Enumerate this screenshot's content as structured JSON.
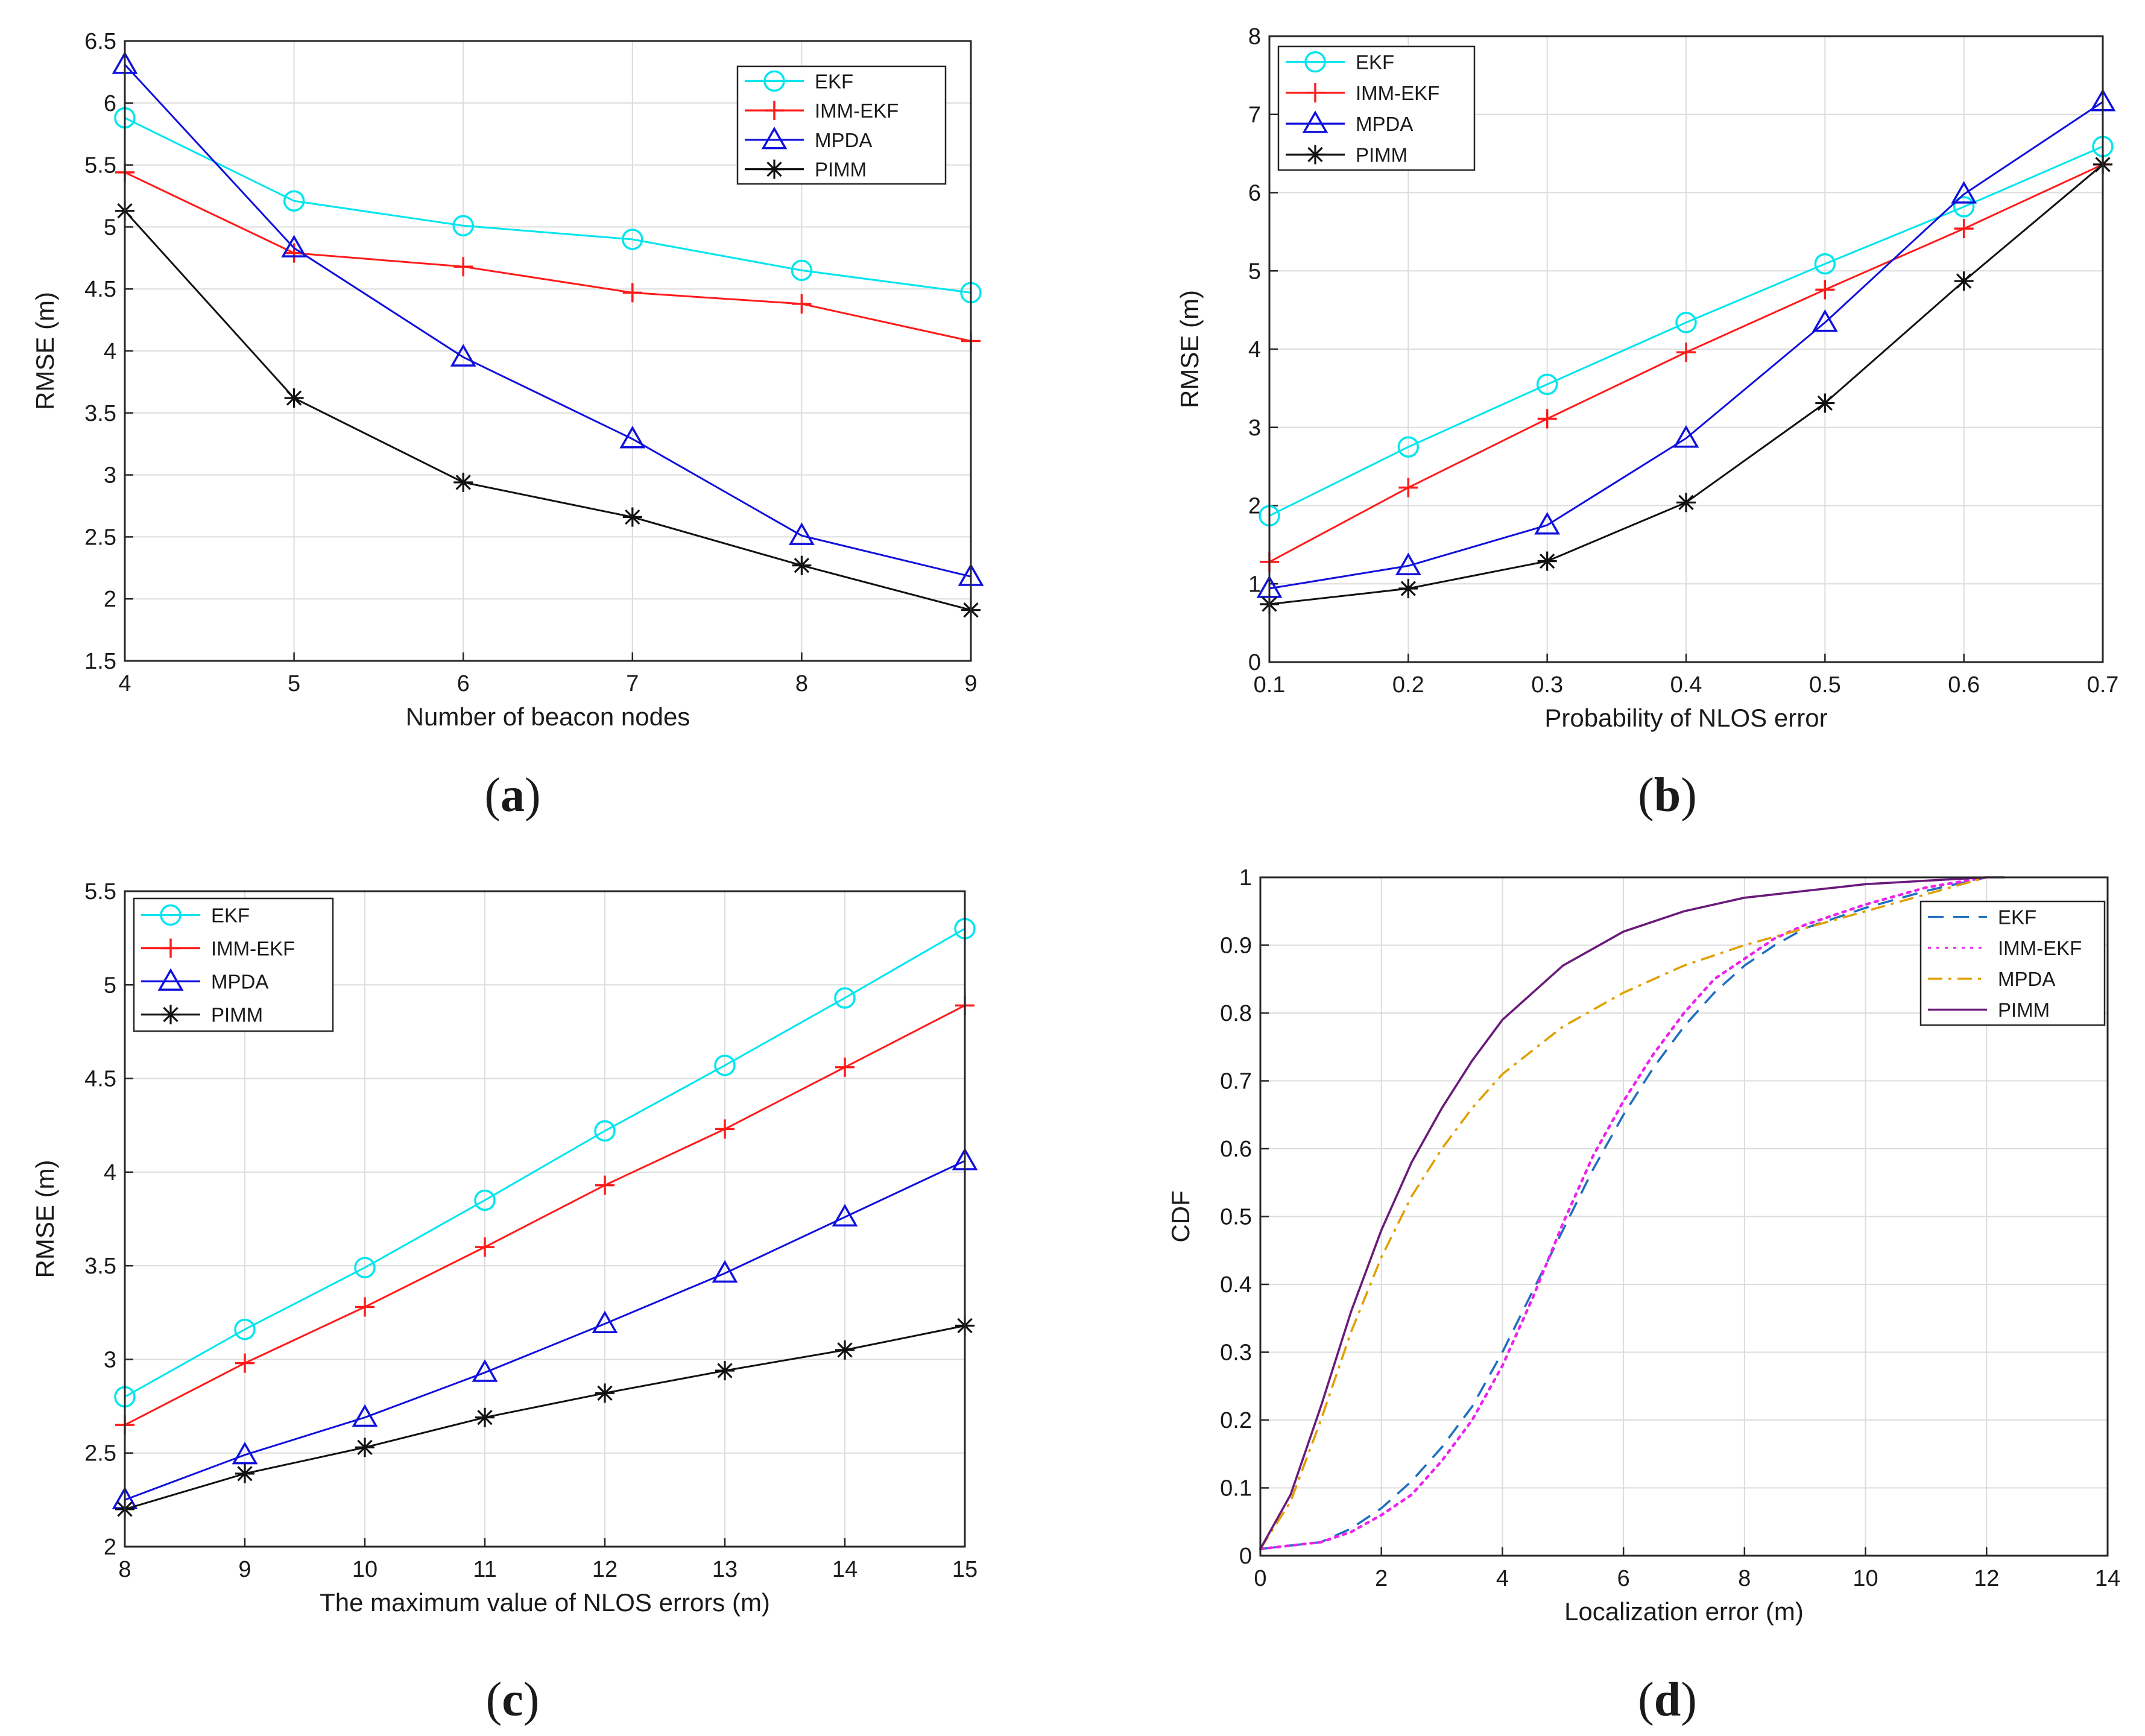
{
  "figure": {
    "panels": [
      {
        "caption_open": "(",
        "caption_letter": "a",
        "caption_close": ")"
      },
      {
        "caption_open": "(",
        "caption_letter": "b",
        "caption_close": ")"
      },
      {
        "caption_open": "(",
        "caption_letter": "c",
        "caption_close": ")"
      },
      {
        "caption_open": "(",
        "caption_letter": "d",
        "caption_close": ")"
      }
    ]
  },
  "colors": {
    "EKF": "#00e5ee",
    "IMM-EKF": "#ff1a1a",
    "MPDA": "#1010dd",
    "PIMM": "#111111",
    "EKF_cdf": "#1f6fbf",
    "IMM-EKF_cdf": "#ee22ee",
    "MPDA_cdf": "#e0a000",
    "PIMM_cdf": "#6a1a7a"
  },
  "chart_data": [
    {
      "type": "line",
      "panel": "a",
      "xlabel": "Number of beacon nodes",
      "ylabel": "RMSE (m)",
      "xlim": [
        4,
        9
      ],
      "ylim": [
        1.5,
        6.5
      ],
      "xticks": [
        "4",
        "5",
        "6",
        "7",
        "8",
        "9"
      ],
      "yticks": [
        "1.5",
        "2",
        "2.5",
        "3",
        "3.5",
        "4",
        "4.5",
        "5",
        "5.5",
        "6",
        "6.5"
      ],
      "legend_position": "top-right",
      "x": [
        4,
        5,
        6,
        7,
        8,
        9
      ],
      "series": [
        {
          "name": "EKF",
          "marker": "circle",
          "values": [
            5.88,
            5.21,
            5.01,
            4.9,
            4.65,
            4.47
          ]
        },
        {
          "name": "IMM-EKF",
          "marker": "plus",
          "values": [
            5.44,
            4.79,
            4.68,
            4.47,
            4.38,
            4.08
          ]
        },
        {
          "name": "MPDA",
          "marker": "triangle",
          "values": [
            6.31,
            4.83,
            3.95,
            3.29,
            2.51,
            2.18
          ]
        },
        {
          "name": "PIMM",
          "marker": "asterisk",
          "values": [
            5.13,
            3.62,
            2.94,
            2.66,
            2.27,
            1.91
          ]
        }
      ]
    },
    {
      "type": "line",
      "panel": "b",
      "xlabel": "Probability of NLOS error",
      "ylabel": "RMSE (m)",
      "xlim": [
        0.1,
        0.7
      ],
      "ylim": [
        0,
        8
      ],
      "xticks": [
        "0.1",
        "0.2",
        "0.3",
        "0.4",
        "0.5",
        "0.6",
        "0.7"
      ],
      "yticks": [
        "0",
        "1",
        "2",
        "3",
        "4",
        "5",
        "6",
        "7",
        "8"
      ],
      "legend_position": "top-left",
      "x": [
        0.1,
        0.2,
        0.3,
        0.4,
        0.5,
        0.6,
        0.7
      ],
      "series": [
        {
          "name": "EKF",
          "marker": "circle",
          "values": [
            1.87,
            2.75,
            3.55,
            4.34,
            5.09,
            5.82,
            6.59
          ]
        },
        {
          "name": "IMM-EKF",
          "marker": "plus",
          "values": [
            1.28,
            2.23,
            3.11,
            3.96,
            4.76,
            5.54,
            6.36
          ]
        },
        {
          "name": "MPDA",
          "marker": "triangle",
          "values": [
            0.94,
            1.23,
            1.75,
            2.86,
            4.34,
            5.98,
            7.16
          ]
        },
        {
          "name": "PIMM",
          "marker": "asterisk",
          "values": [
            0.74,
            0.94,
            1.29,
            2.04,
            3.31,
            4.87,
            6.36
          ]
        }
      ]
    },
    {
      "type": "line",
      "panel": "c",
      "xlabel": "The maximum value of NLOS errors (m)",
      "ylabel": "RMSE (m)",
      "xlim": [
        8,
        15
      ],
      "ylim": [
        2,
        5.5
      ],
      "xticks": [
        "8",
        "9",
        "10",
        "11",
        "12",
        "13",
        "14",
        "15"
      ],
      "yticks": [
        "2",
        "2.5",
        "3",
        "3.5",
        "4",
        "4.5",
        "5",
        "5.5"
      ],
      "legend_position": "top-left",
      "x": [
        8,
        9,
        10,
        11,
        12,
        13,
        14,
        15
      ],
      "series": [
        {
          "name": "EKF",
          "marker": "circle",
          "values": [
            2.8,
            3.16,
            3.49,
            3.85,
            4.22,
            4.57,
            4.93,
            5.3
          ]
        },
        {
          "name": "IMM-EKF",
          "marker": "plus",
          "values": [
            2.65,
            2.98,
            3.28,
            3.6,
            3.93,
            4.23,
            4.56,
            4.89
          ]
        },
        {
          "name": "MPDA",
          "marker": "triangle",
          "values": [
            2.25,
            2.49,
            2.69,
            2.93,
            3.19,
            3.46,
            3.76,
            4.06
          ]
        },
        {
          "name": "PIMM",
          "marker": "asterisk",
          "values": [
            2.2,
            2.39,
            2.53,
            2.69,
            2.82,
            2.94,
            3.05,
            3.18
          ]
        }
      ]
    },
    {
      "type": "line",
      "panel": "d",
      "xlabel": "Localization error (m)",
      "ylabel": "CDF",
      "xlim": [
        0,
        14
      ],
      "ylim": [
        0,
        1
      ],
      "xticks": [
        "0",
        "2",
        "4",
        "6",
        "8",
        "10",
        "12",
        "14"
      ],
      "yticks": [
        "0",
        "0.1",
        "0.2",
        "0.3",
        "0.4",
        "0.5",
        "0.6",
        "0.7",
        "0.8",
        "0.9",
        "1"
      ],
      "legend_position": "top-right",
      "series": [
        {
          "name": "EKF",
          "style": "dashed",
          "x": [
            0,
            0.5,
            1,
            1.5,
            2,
            2.5,
            3,
            3.5,
            4,
            4.5,
            5,
            5.5,
            6,
            6.5,
            7,
            7.5,
            8,
            8.5,
            9,
            10,
            11,
            12
          ],
          "values": [
            0.01,
            0.015,
            0.02,
            0.04,
            0.07,
            0.11,
            0.16,
            0.22,
            0.3,
            0.39,
            0.48,
            0.57,
            0.65,
            0.72,
            0.78,
            0.83,
            0.87,
            0.9,
            0.925,
            0.955,
            0.98,
            1.0
          ]
        },
        {
          "name": "IMM-EKF",
          "style": "dotted",
          "x": [
            0,
            0.5,
            1,
            1.5,
            2,
            2.5,
            3,
            3.5,
            4,
            4.5,
            5,
            5.5,
            6,
            6.5,
            7,
            7.5,
            8,
            8.5,
            9,
            10,
            11,
            12
          ],
          "values": [
            0.01,
            0.015,
            0.02,
            0.035,
            0.06,
            0.09,
            0.14,
            0.2,
            0.28,
            0.38,
            0.49,
            0.59,
            0.67,
            0.74,
            0.8,
            0.85,
            0.88,
            0.91,
            0.93,
            0.96,
            0.985,
            1.0
          ]
        },
        {
          "name": "MPDA",
          "style": "dashdot",
          "x": [
            0,
            0.5,
            1,
            1.5,
            2,
            2.5,
            3,
            3.5,
            4,
            5,
            6,
            7,
            8,
            9,
            10,
            11,
            12
          ],
          "values": [
            0.01,
            0.08,
            0.2,
            0.33,
            0.44,
            0.53,
            0.6,
            0.66,
            0.71,
            0.78,
            0.83,
            0.87,
            0.9,
            0.925,
            0.95,
            0.975,
            1.0
          ]
        },
        {
          "name": "PIMM",
          "style": "solid",
          "x": [
            0,
            0.5,
            1,
            1.5,
            2,
            2.5,
            3,
            3.5,
            4,
            5,
            6,
            7,
            8,
            9,
            10,
            11,
            12,
            12.3
          ],
          "values": [
            0.01,
            0.09,
            0.22,
            0.36,
            0.48,
            0.58,
            0.66,
            0.73,
            0.79,
            0.87,
            0.92,
            0.95,
            0.97,
            0.98,
            0.99,
            0.995,
            1.0,
            1.0
          ]
        }
      ]
    }
  ]
}
